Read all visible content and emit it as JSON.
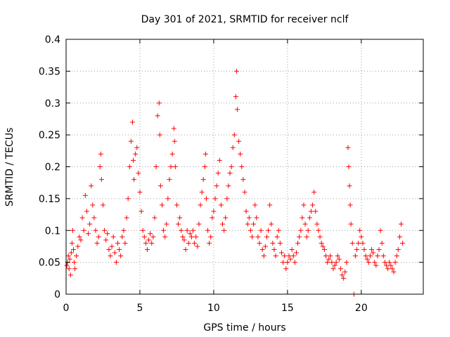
{
  "chart_data": {
    "type": "scatter",
    "title": "Day 301 of 2021, SRMTID for receiver nclf",
    "xlabel": "GPS time / hours",
    "ylabel": "SRMTID / TECUs",
    "xlim": [
      0,
      24.2
    ],
    "ylim": [
      0,
      0.4
    ],
    "xticks": [
      0,
      5,
      10,
      15,
      20
    ],
    "xtick_labels": [
      "0",
      "5",
      "10",
      "15",
      "20"
    ],
    "yticks": [
      0,
      0.05,
      0.1,
      0.15,
      0.2,
      0.25,
      0.3,
      0.35,
      0.4
    ],
    "ytick_labels": [
      "0",
      "0.05",
      "0.1",
      "0.15",
      "0.2",
      "0.25",
      "0.3",
      "0.35",
      "0.4"
    ],
    "grid": true,
    "marker": "plus",
    "color": "#ff0000",
    "points": [
      [
        0.05,
        0.045
      ],
      [
        0.1,
        0.05
      ],
      [
        0.15,
        0.06
      ],
      [
        0.2,
        0.04
      ],
      [
        0.25,
        0.055
      ],
      [
        0.3,
        0.03
      ],
      [
        0.35,
        0.065
      ],
      [
        0.4,
        0.08
      ],
      [
        0.45,
        0.1
      ],
      [
        0.5,
        0.07
      ],
      [
        0.55,
        0.05
      ],
      [
        0.6,
        0.04
      ],
      [
        0.7,
        0.06
      ],
      [
        0.8,
        0.075
      ],
      [
        0.9,
        0.09
      ],
      [
        1.0,
        0.085
      ],
      [
        1.1,
        0.12
      ],
      [
        1.2,
        0.1
      ],
      [
        1.3,
        0.155
      ],
      [
        1.4,
        0.13
      ],
      [
        1.5,
        0.095
      ],
      [
        1.6,
        0.11
      ],
      [
        1.7,
        0.17
      ],
      [
        1.8,
        0.14
      ],
      [
        1.9,
        0.12
      ],
      [
        2.0,
        0.1
      ],
      [
        2.1,
        0.08
      ],
      [
        2.2,
        0.09
      ],
      [
        2.3,
        0.2
      ],
      [
        2.35,
        0.22
      ],
      [
        2.4,
        0.18
      ],
      [
        2.5,
        0.14
      ],
      [
        2.6,
        0.1
      ],
      [
        2.7,
        0.085
      ],
      [
        2.8,
        0.095
      ],
      [
        2.9,
        0.07
      ],
      [
        3.0,
        0.06
      ],
      [
        3.1,
        0.075
      ],
      [
        3.2,
        0.09
      ],
      [
        3.3,
        0.065
      ],
      [
        3.4,
        0.05
      ],
      [
        3.5,
        0.08
      ],
      [
        3.6,
        0.07
      ],
      [
        3.7,
        0.06
      ],
      [
        3.8,
        0.09
      ],
      [
        3.9,
        0.1
      ],
      [
        4.0,
        0.08
      ],
      [
        4.1,
        0.12
      ],
      [
        4.2,
        0.15
      ],
      [
        4.3,
        0.2
      ],
      [
        4.4,
        0.24
      ],
      [
        4.5,
        0.27
      ],
      [
        4.55,
        0.21
      ],
      [
        4.6,
        0.18
      ],
      [
        4.7,
        0.22
      ],
      [
        4.8,
        0.23
      ],
      [
        4.9,
        0.19
      ],
      [
        5.0,
        0.16
      ],
      [
        5.1,
        0.13
      ],
      [
        5.2,
        0.1
      ],
      [
        5.3,
        0.09
      ],
      [
        5.4,
        0.08
      ],
      [
        5.5,
        0.07
      ],
      [
        5.6,
        0.085
      ],
      [
        5.7,
        0.095
      ],
      [
        5.8,
        0.08
      ],
      [
        5.9,
        0.09
      ],
      [
        6.0,
        0.12
      ],
      [
        6.1,
        0.2
      ],
      [
        6.2,
        0.28
      ],
      [
        6.3,
        0.3
      ],
      [
        6.35,
        0.25
      ],
      [
        6.4,
        0.17
      ],
      [
        6.5,
        0.14
      ],
      [
        6.6,
        0.1
      ],
      [
        6.7,
        0.09
      ],
      [
        6.8,
        0.11
      ],
      [
        6.9,
        0.15
      ],
      [
        7.0,
        0.18
      ],
      [
        7.1,
        0.2
      ],
      [
        7.2,
        0.22
      ],
      [
        7.3,
        0.26
      ],
      [
        7.35,
        0.24
      ],
      [
        7.4,
        0.2
      ],
      [
        7.5,
        0.14
      ],
      [
        7.6,
        0.11
      ],
      [
        7.7,
        0.12
      ],
      [
        7.8,
        0.1
      ],
      [
        7.9,
        0.09
      ],
      [
        8.0,
        0.085
      ],
      [
        8.1,
        0.07
      ],
      [
        8.2,
        0.1
      ],
      [
        8.3,
        0.08
      ],
      [
        8.4,
        0.095
      ],
      [
        8.5,
        0.09
      ],
      [
        8.6,
        0.1
      ],
      [
        8.7,
        0.08
      ],
      [
        8.8,
        0.09
      ],
      [
        8.9,
        0.075
      ],
      [
        9.0,
        0.11
      ],
      [
        9.1,
        0.14
      ],
      [
        9.2,
        0.16
      ],
      [
        9.3,
        0.18
      ],
      [
        9.4,
        0.2
      ],
      [
        9.45,
        0.22
      ],
      [
        9.5,
        0.15
      ],
      [
        9.6,
        0.1
      ],
      [
        9.7,
        0.08
      ],
      [
        9.8,
        0.09
      ],
      [
        9.9,
        0.12
      ],
      [
        10.0,
        0.13
      ],
      [
        10.1,
        0.15
      ],
      [
        10.2,
        0.17
      ],
      [
        10.3,
        0.19
      ],
      [
        10.4,
        0.21
      ],
      [
        10.5,
        0.14
      ],
      [
        10.6,
        0.11
      ],
      [
        10.7,
        0.1
      ],
      [
        10.8,
        0.12
      ],
      [
        10.9,
        0.15
      ],
      [
        11.0,
        0.17
      ],
      [
        11.1,
        0.19
      ],
      [
        11.2,
        0.2
      ],
      [
        11.3,
        0.23
      ],
      [
        11.4,
        0.25
      ],
      [
        11.5,
        0.31
      ],
      [
        11.55,
        0.35
      ],
      [
        11.6,
        0.29
      ],
      [
        11.7,
        0.24
      ],
      [
        11.8,
        0.22
      ],
      [
        11.9,
        0.2
      ],
      [
        12.0,
        0.18
      ],
      [
        12.1,
        0.16
      ],
      [
        12.2,
        0.13
      ],
      [
        12.3,
        0.11
      ],
      [
        12.4,
        0.12
      ],
      [
        12.5,
        0.1
      ],
      [
        12.6,
        0.09
      ],
      [
        12.7,
        0.11
      ],
      [
        12.8,
        0.14
      ],
      [
        12.9,
        0.12
      ],
      [
        13.0,
        0.09
      ],
      [
        13.1,
        0.08
      ],
      [
        13.2,
        0.1
      ],
      [
        13.3,
        0.07
      ],
      [
        13.4,
        0.06
      ],
      [
        13.5,
        0.075
      ],
      [
        13.6,
        0.09
      ],
      [
        13.7,
        0.1
      ],
      [
        13.8,
        0.14
      ],
      [
        13.9,
        0.11
      ],
      [
        14.0,
        0.08
      ],
      [
        14.1,
        0.07
      ],
      [
        14.2,
        0.06
      ],
      [
        14.3,
        0.09
      ],
      [
        14.4,
        0.1
      ],
      [
        14.5,
        0.08
      ],
      [
        14.6,
        0.065
      ],
      [
        14.7,
        0.05
      ],
      [
        14.8,
        0.06
      ],
      [
        14.9,
        0.04
      ],
      [
        15.0,
        0.05
      ],
      [
        15.1,
        0.06
      ],
      [
        15.2,
        0.055
      ],
      [
        15.3,
        0.07
      ],
      [
        15.4,
        0.06
      ],
      [
        15.5,
        0.05
      ],
      [
        15.6,
        0.065
      ],
      [
        15.7,
        0.08
      ],
      [
        15.8,
        0.09
      ],
      [
        15.9,
        0.1
      ],
      [
        16.0,
        0.12
      ],
      [
        16.1,
        0.14
      ],
      [
        16.2,
        0.11
      ],
      [
        16.3,
        0.09
      ],
      [
        16.4,
        0.1
      ],
      [
        16.5,
        0.12
      ],
      [
        16.6,
        0.13
      ],
      [
        16.7,
        0.14
      ],
      [
        16.8,
        0.16
      ],
      [
        16.9,
        0.13
      ],
      [
        17.0,
        0.11
      ],
      [
        17.1,
        0.1
      ],
      [
        17.2,
        0.09
      ],
      [
        17.3,
        0.08
      ],
      [
        17.4,
        0.075
      ],
      [
        17.5,
        0.07
      ],
      [
        17.6,
        0.06
      ],
      [
        17.7,
        0.05
      ],
      [
        17.8,
        0.055
      ],
      [
        17.9,
        0.06
      ],
      [
        18.0,
        0.05
      ],
      [
        18.1,
        0.04
      ],
      [
        18.2,
        0.045
      ],
      [
        18.3,
        0.05
      ],
      [
        18.4,
        0.06
      ],
      [
        18.5,
        0.055
      ],
      [
        18.6,
        0.04
      ],
      [
        18.7,
        0.03
      ],
      [
        18.8,
        0.025
      ],
      [
        18.9,
        0.035
      ],
      [
        19.0,
        0.05
      ],
      [
        19.1,
        0.23
      ],
      [
        19.15,
        0.2
      ],
      [
        19.2,
        0.17
      ],
      [
        19.25,
        0.14
      ],
      [
        19.3,
        0.11
      ],
      [
        19.4,
        0.08
      ],
      [
        19.5,
        0.0
      ],
      [
        19.6,
        0.06
      ],
      [
        19.7,
        0.07
      ],
      [
        19.8,
        0.08
      ],
      [
        19.9,
        0.1
      ],
      [
        20.0,
        0.09
      ],
      [
        20.1,
        0.08
      ],
      [
        20.2,
        0.07
      ],
      [
        20.3,
        0.06
      ],
      [
        20.4,
        0.055
      ],
      [
        20.5,
        0.05
      ],
      [
        20.6,
        0.06
      ],
      [
        20.7,
        0.07
      ],
      [
        20.8,
        0.065
      ],
      [
        20.9,
        0.05
      ],
      [
        21.0,
        0.045
      ],
      [
        21.1,
        0.06
      ],
      [
        21.2,
        0.07
      ],
      [
        21.3,
        0.1
      ],
      [
        21.4,
        0.08
      ],
      [
        21.5,
        0.06
      ],
      [
        21.6,
        0.05
      ],
      [
        21.7,
        0.045
      ],
      [
        21.8,
        0.04
      ],
      [
        21.9,
        0.05
      ],
      [
        22.0,
        0.045
      ],
      [
        22.1,
        0.04
      ],
      [
        22.2,
        0.035
      ],
      [
        22.3,
        0.05
      ],
      [
        22.4,
        0.06
      ],
      [
        22.5,
        0.07
      ],
      [
        22.6,
        0.09
      ],
      [
        22.7,
        0.11
      ],
      [
        22.8,
        0.08
      ]
    ]
  }
}
